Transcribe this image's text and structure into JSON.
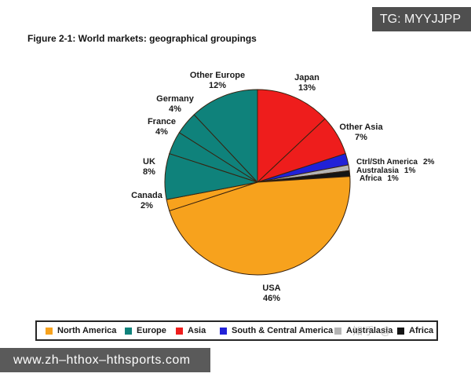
{
  "badge": {
    "text": "TG: MYYJJPP"
  },
  "title": "Figure 2-1: World markets: geographical groupings",
  "watermark": "知乎 @",
  "footer": {
    "url": "www.zh–hthox–hthsports.com"
  },
  "chart_data": {
    "type": "pie",
    "title": "Figure 2-1: World markets: geographical groupings",
    "center": [
      328,
      232
    ],
    "radius": 118,
    "start_angle_deg": -90,
    "direction": "clockwise",
    "stroke": "#38220f",
    "slices": [
      {
        "label": "Japan",
        "value": 13,
        "pct_text": "13%",
        "group": "Asia",
        "color": "#ee1d1c"
      },
      {
        "label": "Other Asia",
        "value": 7,
        "pct_text": "7%",
        "group": "Asia",
        "color": "#ee1d1c"
      },
      {
        "label": "Ctrl/Sth America",
        "value": 2,
        "pct_text": "2%",
        "group": "South & Central America",
        "color": "#2121d8"
      },
      {
        "label": "Australasia",
        "value": 1,
        "pct_text": "1%",
        "group": "Australasia",
        "color": "#b4b4b4"
      },
      {
        "label": "Africa",
        "value": 1,
        "pct_text": "1%",
        "group": "Africa",
        "color": "#151515"
      },
      {
        "label": "USA",
        "value": 46,
        "pct_text": "46%",
        "group": "North America",
        "color": "#f7a21d"
      },
      {
        "label": "Canada",
        "value": 2,
        "pct_text": "2%",
        "group": "North America",
        "color": "#f7a21d"
      },
      {
        "label": "UK",
        "value": 8,
        "pct_text": "8%",
        "group": "Europe",
        "color": "#0f827b"
      },
      {
        "label": "France",
        "value": 4,
        "pct_text": "4%",
        "group": "Europe",
        "color": "#0f827b"
      },
      {
        "label": "Germany",
        "value": 4,
        "pct_text": "4%",
        "group": "Europe",
        "color": "#0f827b"
      },
      {
        "label": "Other Europe",
        "value": 12,
        "pct_text": "12%",
        "group": "Europe",
        "color": "#0f827b"
      }
    ],
    "legend_position": "bottom",
    "legend": [
      {
        "label": "North America",
        "color": "#f7a21d"
      },
      {
        "label": "Europe",
        "color": "#0f827b"
      },
      {
        "label": "Asia",
        "color": "#ee1d1c"
      },
      {
        "label": "South & Central America",
        "color": "#2121d8"
      },
      {
        "label": "Australasia",
        "color": "#b4b4b4"
      },
      {
        "label": "Africa",
        "color": "#151515"
      }
    ]
  }
}
